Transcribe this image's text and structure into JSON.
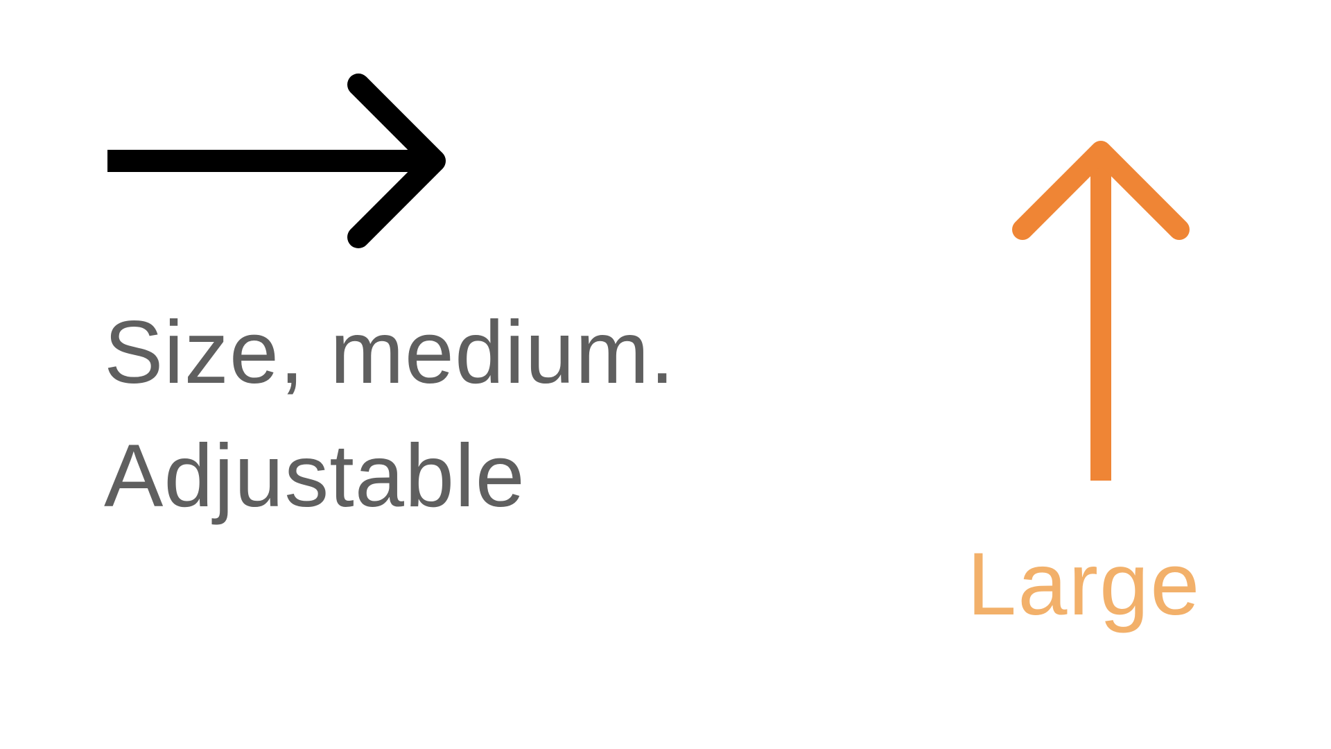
{
  "announcement": {
    "line1": "Size, medium.",
    "line2": "Adjustable"
  },
  "value_label": "Large",
  "icons": {
    "current": "right-arrow-icon",
    "next": "up-arrow-icon"
  },
  "colors": {
    "background": "#ffffff",
    "current_arrow": "#000000",
    "announcement_text": "#5f5f5f",
    "next_arrow": "#ef8535",
    "next_label": "#f2b06a"
  }
}
